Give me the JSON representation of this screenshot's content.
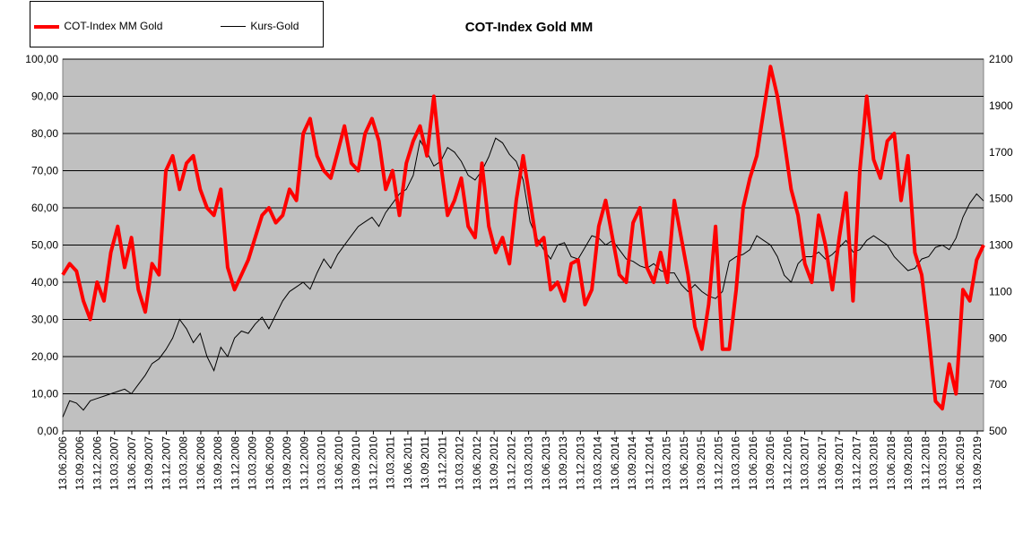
{
  "chart_data": {
    "type": "line",
    "title": "COT-Index Gold MM",
    "xlabel": "",
    "ylabel": "",
    "y_left_range": [
      0,
      100
    ],
    "y_right_range": [
      500,
      2100
    ],
    "y_left_ticks": [
      "0,00",
      "10,00",
      "20,00",
      "30,00",
      "40,00",
      "50,00",
      "60,00",
      "70,00",
      "80,00",
      "90,00",
      "100,00"
    ],
    "y_right_ticks": [
      "500",
      "700",
      "900",
      "1100",
      "1300",
      "1500",
      "1700",
      "1900",
      "2100"
    ],
    "x_ticks": [
      "13.06.2006",
      "13.09.2006",
      "13.12.2006",
      "13.03.2007",
      "13.06.2007",
      "13.09.2007",
      "13.12.2007",
      "13.03.2008",
      "13.06.2008",
      "13.09.2008",
      "13.12.2008",
      "13.03.2009",
      "13.06.2009",
      "13.09.2009",
      "13.12.2009",
      "13.03.2010",
      "13.06.2010",
      "13.09.2010",
      "13.12.2010",
      "13.03.2011",
      "13.06.2011",
      "13.09.2011",
      "13.12.2011",
      "13.03.2012",
      "13.06.2012",
      "13.09.2012",
      "13.12.2012",
      "13.03.2013",
      "13.06.2013",
      "13.09.2013",
      "13.12.2013",
      "13.03.2014",
      "13.06.2014",
      "13.09.2014",
      "13.12.2014",
      "13.03.2015",
      "13.06.2015",
      "13.09.2015",
      "13.12.2015",
      "13.03.2016",
      "13.06.2016",
      "13.09.2016",
      "13.12.2016",
      "13.03.2017",
      "13.06.2017",
      "13.09.2017",
      "13.12.2017",
      "13.03.2018",
      "13.06.2018",
      "13.09.2018",
      "13.12.2018",
      "13.03.2019",
      "13.06.2019",
      "13.09.2019"
    ],
    "grid": true,
    "legend_position": "top-left",
    "series": [
      {
        "name": "COT-Index MM Gold",
        "axis": "left",
        "color": "#ff0000",
        "x": [
          2006.45,
          2006.55,
          2006.65,
          2006.75,
          2006.85,
          2006.95,
          2007.05,
          2007.15,
          2007.25,
          2007.35,
          2007.45,
          2007.55,
          2007.65,
          2007.75,
          2007.85,
          2007.95,
          2008.05,
          2008.15,
          2008.25,
          2008.35,
          2008.45,
          2008.55,
          2008.65,
          2008.75,
          2008.85,
          2008.95,
          2009.05,
          2009.15,
          2009.25,
          2009.35,
          2009.45,
          2009.55,
          2009.65,
          2009.75,
          2009.85,
          2009.95,
          2010.05,
          2010.15,
          2010.25,
          2010.35,
          2010.45,
          2010.55,
          2010.65,
          2010.75,
          2010.85,
          2010.95,
          2011.05,
          2011.15,
          2011.25,
          2011.35,
          2011.45,
          2011.55,
          2011.65,
          2011.75,
          2011.85,
          2011.95,
          2012.05,
          2012.15,
          2012.25,
          2012.35,
          2012.45,
          2012.55,
          2012.65,
          2012.75,
          2012.85,
          2012.95,
          2013.05,
          2013.15,
          2013.25,
          2013.35,
          2013.45,
          2013.55,
          2013.65,
          2013.75,
          2013.85,
          2013.95,
          2014.05,
          2014.15,
          2014.25,
          2014.35,
          2014.45,
          2014.55,
          2014.65,
          2014.75,
          2014.85,
          2014.95,
          2015.05,
          2015.15,
          2015.25,
          2015.35,
          2015.45,
          2015.55,
          2015.65,
          2015.75,
          2015.85,
          2015.95,
          2016.05,
          2016.15,
          2016.25,
          2016.35,
          2016.45,
          2016.55,
          2016.65,
          2016.75,
          2016.85,
          2016.95,
          2017.05,
          2017.15,
          2017.25,
          2017.35,
          2017.45,
          2017.55,
          2017.65,
          2017.75,
          2017.85,
          2017.95,
          2018.05,
          2018.15,
          2018.25,
          2018.35,
          2018.45,
          2018.55,
          2018.65,
          2018.75,
          2018.85,
          2018.95,
          2019.05,
          2019.15,
          2019.25,
          2019.35,
          2019.45,
          2019.55,
          2019.65,
          2019.75,
          2019.85
        ],
        "values": [
          42,
          45,
          43,
          35,
          30,
          40,
          35,
          48,
          55,
          44,
          52,
          38,
          32,
          45,
          42,
          70,
          74,
          65,
          72,
          74,
          65,
          60,
          58,
          65,
          44,
          38,
          42,
          46,
          52,
          58,
          60,
          56,
          58,
          65,
          62,
          80,
          84,
          74,
          70,
          68,
          75,
          82,
          72,
          70,
          80,
          84,
          78,
          65,
          70,
          58,
          72,
          78,
          82,
          74,
          90,
          72,
          58,
          62,
          68,
          55,
          52,
          72,
          55,
          48,
          52,
          45,
          62,
          74,
          62,
          50,
          52,
          38,
          40,
          35,
          45,
          46,
          34,
          38,
          55,
          62,
          52,
          42,
          40,
          56,
          60,
          44,
          40,
          48,
          40,
          62,
          52,
          42,
          28,
          22,
          34,
          55,
          22,
          22,
          38,
          60,
          68,
          74,
          86,
          98,
          90,
          78,
          65,
          58,
          45,
          40,
          58,
          50,
          38,
          52,
          64,
          35,
          70,
          90,
          73,
          68,
          78,
          80,
          62,
          74,
          48,
          42,
          26,
          8,
          6,
          18,
          10,
          38,
          35,
          46,
          50
        ]
      },
      {
        "name": "Kurs-Gold",
        "axis": "right",
        "color": "#000000",
        "x": [
          2006.45,
          2006.55,
          2006.65,
          2006.75,
          2006.85,
          2006.95,
          2007.05,
          2007.15,
          2007.25,
          2007.35,
          2007.45,
          2007.55,
          2007.65,
          2007.75,
          2007.85,
          2007.95,
          2008.05,
          2008.15,
          2008.25,
          2008.35,
          2008.45,
          2008.55,
          2008.65,
          2008.75,
          2008.85,
          2008.95,
          2009.05,
          2009.15,
          2009.25,
          2009.35,
          2009.45,
          2009.55,
          2009.65,
          2009.75,
          2009.85,
          2009.95,
          2010.05,
          2010.15,
          2010.25,
          2010.35,
          2010.45,
          2010.55,
          2010.65,
          2010.75,
          2010.85,
          2010.95,
          2011.05,
          2011.15,
          2011.25,
          2011.35,
          2011.45,
          2011.55,
          2011.65,
          2011.75,
          2011.85,
          2011.95,
          2012.05,
          2012.15,
          2012.25,
          2012.35,
          2012.45,
          2012.55,
          2012.65,
          2012.75,
          2012.85,
          2012.95,
          2013.05,
          2013.15,
          2013.25,
          2013.35,
          2013.45,
          2013.55,
          2013.65,
          2013.75,
          2013.85,
          2013.95,
          2014.05,
          2014.15,
          2014.25,
          2014.35,
          2014.45,
          2014.55,
          2014.65,
          2014.75,
          2014.85,
          2014.95,
          2015.05,
          2015.15,
          2015.25,
          2015.35,
          2015.45,
          2015.55,
          2015.65,
          2015.75,
          2015.85,
          2015.95,
          2016.05,
          2016.15,
          2016.25,
          2016.35,
          2016.45,
          2016.55,
          2016.65,
          2016.75,
          2016.85,
          2016.95,
          2017.05,
          2017.15,
          2017.25,
          2017.35,
          2017.45,
          2017.55,
          2017.65,
          2017.75,
          2017.85,
          2017.95,
          2018.05,
          2018.15,
          2018.25,
          2018.35,
          2018.45,
          2018.55,
          2018.65,
          2018.75,
          2018.85,
          2018.95,
          2019.05,
          2019.15,
          2019.25,
          2019.35,
          2019.45,
          2019.55,
          2019.65,
          2019.75,
          2019.85
        ],
        "values": [
          560,
          630,
          620,
          590,
          630,
          640,
          650,
          660,
          670,
          680,
          660,
          700,
          740,
          790,
          810,
          850,
          900,
          980,
          940,
          880,
          920,
          820,
          760,
          860,
          820,
          900,
          930,
          920,
          960,
          990,
          940,
          1000,
          1060,
          1100,
          1120,
          1140,
          1110,
          1180,
          1240,
          1200,
          1260,
          1300,
          1340,
          1380,
          1400,
          1420,
          1380,
          1440,
          1480,
          1520,
          1540,
          1600,
          1750,
          1700,
          1640,
          1660,
          1720,
          1700,
          1660,
          1600,
          1580,
          1620,
          1680,
          1760,
          1740,
          1690,
          1660,
          1580,
          1400,
          1330,
          1280,
          1240,
          1300,
          1310,
          1250,
          1240,
          1290,
          1340,
          1330,
          1300,
          1320,
          1280,
          1240,
          1230,
          1210,
          1200,
          1220,
          1190,
          1180,
          1180,
          1130,
          1100,
          1130,
          1100,
          1080,
          1070,
          1100,
          1230,
          1250,
          1260,
          1280,
          1340,
          1320,
          1300,
          1250,
          1170,
          1140,
          1220,
          1250,
          1250,
          1270,
          1240,
          1260,
          1290,
          1320,
          1270,
          1280,
          1320,
          1340,
          1320,
          1300,
          1250,
          1220,
          1190,
          1200,
          1240,
          1250,
          1290,
          1300,
          1280,
          1330,
          1420,
          1480,
          1520,
          1490
        ]
      }
    ]
  }
}
